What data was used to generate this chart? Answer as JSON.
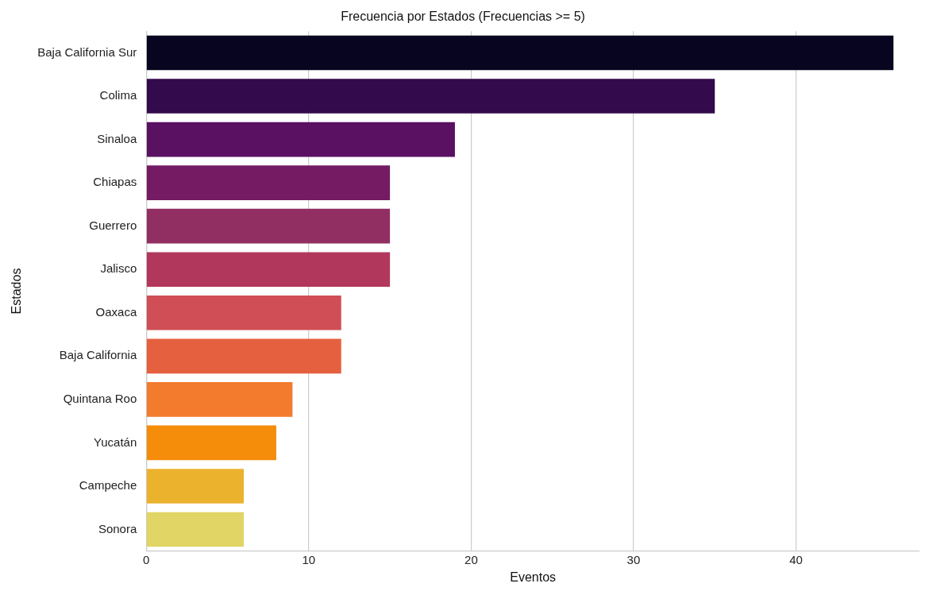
{
  "chart_data": {
    "type": "bar",
    "orientation": "horizontal",
    "title": "Frecuencia por Estados (Frecuencias >= 5)",
    "xlabel": "Eventos",
    "ylabel": "Estados",
    "categories": [
      "Baja California Sur",
      "Colima",
      "Sinaloa",
      "Chiapas",
      "Guerrero",
      "Jalisco",
      "Oaxaca",
      "Baja California",
      "Quintana Roo",
      "Yucatán",
      "Campeche",
      "Sonora"
    ],
    "values": [
      46,
      35,
      19,
      15,
      15,
      15,
      12,
      12,
      9,
      8,
      6,
      6
    ],
    "colors": [
      "#07051f",
      "#330a4b",
      "#5a1162",
      "#741b63",
      "#912f63",
      "#b2375c",
      "#d04f56",
      "#e5603f",
      "#f37b2d",
      "#f58c0a",
      "#ebb22d",
      "#e0d565"
    ],
    "xlim": [
      0,
      47.6
    ],
    "xticks": [
      0,
      10,
      20,
      30,
      40
    ],
    "grid": "x",
    "legend": false
  }
}
